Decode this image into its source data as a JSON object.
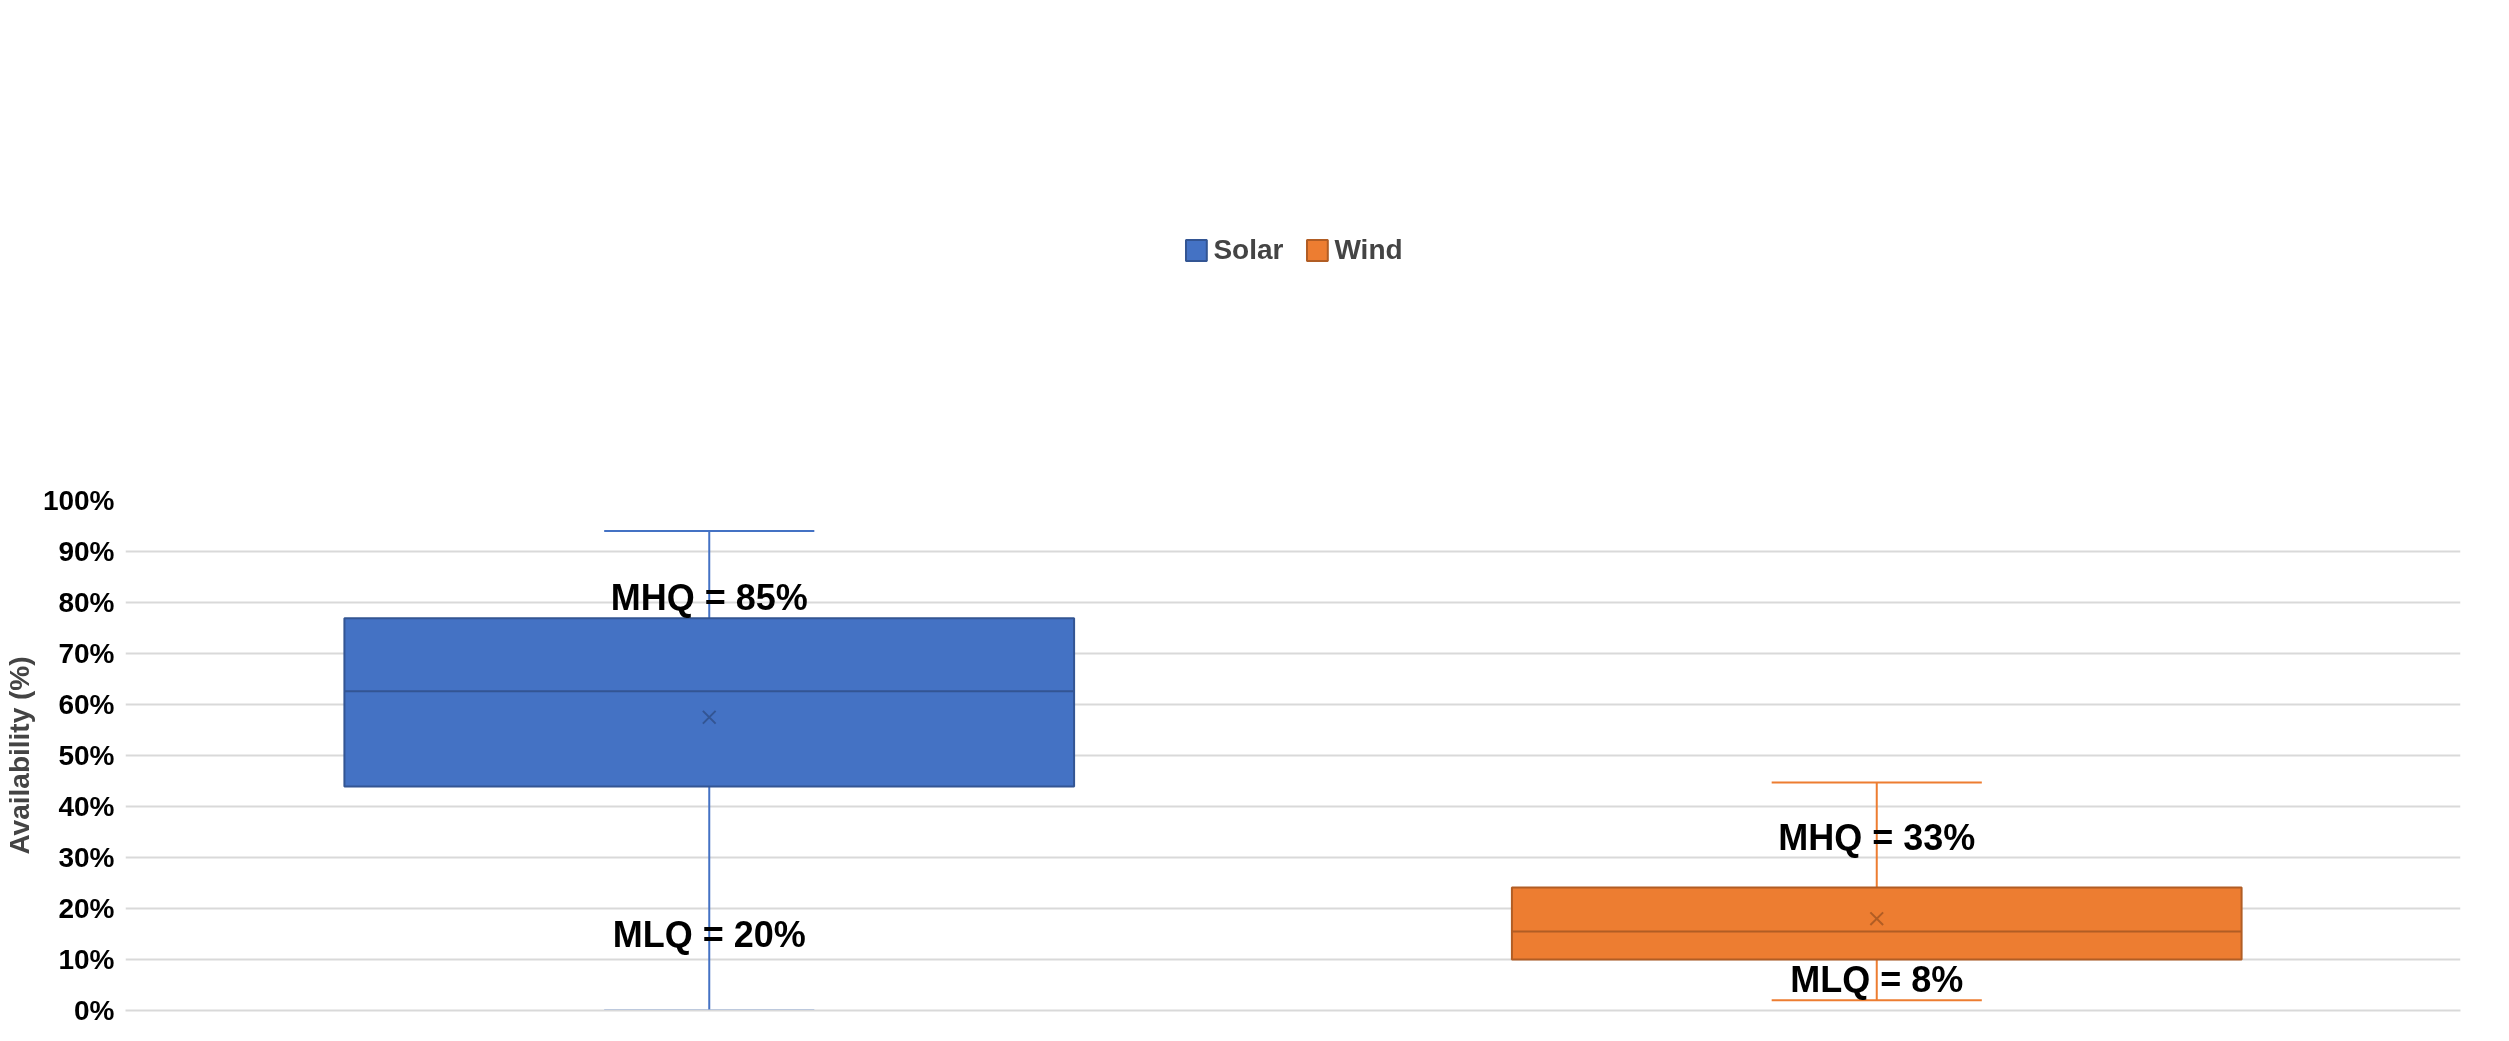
{
  "chart_data": {
    "type": "box",
    "ylabel": "Availability (%)",
    "categories": [
      null,
      null
    ],
    "series": [
      {
        "name": "Solar",
        "color": "#4472c4",
        "boxes": [
          {
            "low": 0,
            "q1": 43.9,
            "median": 62.6,
            "q3": 76.9,
            "high": 94.0,
            "mean": 57.5
          },
          null
        ]
      },
      {
        "name": "Wind",
        "color": "#ed7d31",
        "boxes": [
          null,
          {
            "low": 2.0,
            "q1": 10.0,
            "median": 15.5,
            "q3": 24.1,
            "high": 44.7,
            "mean": 18.0
          }
        ]
      }
    ],
    "ylim": [
      0,
      100
    ],
    "yticks": [
      {
        "value": 0,
        "label": "0%"
      },
      {
        "value": 10,
        "label": "10%"
      },
      {
        "value": 20,
        "label": "20%"
      },
      {
        "value": 30,
        "label": "30%"
      },
      {
        "value": 40,
        "label": "40%"
      },
      {
        "value": 50,
        "label": "50%"
      },
      {
        "value": 60,
        "label": "60%"
      },
      {
        "value": 70,
        "label": "70%"
      },
      {
        "value": 80,
        "label": "80%"
      },
      {
        "value": 90,
        "label": "90%"
      },
      {
        "value": 100,
        "label": "100%"
      }
    ],
    "annotations": [
      {
        "text": "MHQ = 85%",
        "y": 81
      },
      {
        "text": "MLQ = 20%",
        "y": 15
      },
      {
        "text": "MHQ = 33%",
        "y": 34
      },
      {
        "text": "MLQ = 8%",
        "y": 6
      }
    ],
    "tick_labels": "y",
    "grid": "y",
    "legend": "top",
    "marker": "cross"
  }
}
